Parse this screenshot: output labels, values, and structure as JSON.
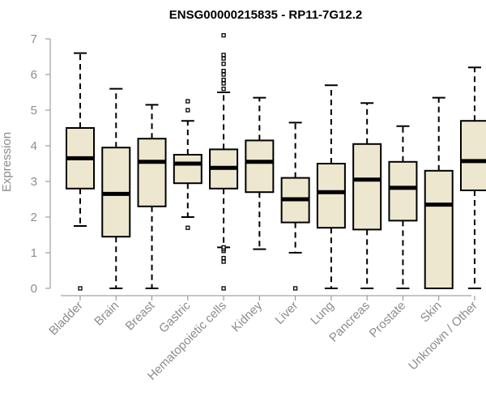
{
  "chart_data": {
    "type": "box",
    "title": "ENSG00000215835 - RP11-7G12.2",
    "xlabel": "",
    "ylabel": "Expression",
    "ylim": [
      0,
      7
    ],
    "yticks": [
      0,
      1,
      2,
      3,
      4,
      5,
      6,
      7
    ],
    "box_fill": "#ede7cf",
    "categories": [
      "Bladder",
      "Brain",
      "Breast",
      "Gastric",
      "Hematopoietic cells",
      "Kidney",
      "Liver",
      "Lung",
      "Pancreas",
      "Prostate",
      "Skin",
      "Unknown / Other"
    ],
    "series": [
      {
        "name": "Bladder",
        "whisker_low": 1.75,
        "q1": 2.8,
        "median": 3.65,
        "q3": 4.5,
        "whisker_high": 6.6,
        "outliers": [
          0.0
        ]
      },
      {
        "name": "Brain",
        "whisker_low": 0.0,
        "q1": 1.45,
        "median": 2.65,
        "q3": 3.95,
        "whisker_high": 5.6,
        "outliers": []
      },
      {
        "name": "Breast",
        "whisker_low": 0.0,
        "q1": 2.3,
        "median": 3.55,
        "q3": 4.2,
        "whisker_high": 5.15,
        "outliers": []
      },
      {
        "name": "Gastric",
        "whisker_low": 2.0,
        "q1": 2.95,
        "median": 3.5,
        "q3": 3.75,
        "whisker_high": 4.7,
        "outliers": [
          1.7,
          5.0,
          5.25
        ]
      },
      {
        "name": "Hematopoietic cells",
        "whisker_low": 1.15,
        "q1": 2.8,
        "median": 3.38,
        "q3": 3.9,
        "whisker_high": 5.5,
        "outliers": [
          0.0,
          0.75,
          0.85,
          1.05,
          1.1,
          1.15,
          5.6,
          5.75,
          5.85,
          6.0,
          6.1,
          6.3,
          6.45,
          6.55,
          7.1
        ]
      },
      {
        "name": "Kidney",
        "whisker_low": 1.1,
        "q1": 2.7,
        "median": 3.55,
        "q3": 4.15,
        "whisker_high": 5.35,
        "outliers": []
      },
      {
        "name": "Liver",
        "whisker_low": 1.0,
        "q1": 1.85,
        "median": 2.5,
        "q3": 3.1,
        "whisker_high": 4.65,
        "outliers": [
          0.0
        ]
      },
      {
        "name": "Lung",
        "whisker_low": 0.0,
        "q1": 1.7,
        "median": 2.7,
        "q3": 3.5,
        "whisker_high": 5.7,
        "outliers": []
      },
      {
        "name": "Pancreas",
        "whisker_low": 0.0,
        "q1": 1.65,
        "median": 3.05,
        "q3": 4.05,
        "whisker_high": 5.2,
        "outliers": []
      },
      {
        "name": "Prostate",
        "whisker_low": 0.0,
        "q1": 1.9,
        "median": 2.82,
        "q3": 3.55,
        "whisker_high": 4.55,
        "outliers": []
      },
      {
        "name": "Skin",
        "whisker_low": 0.0,
        "q1": 0.0,
        "median": 2.35,
        "q3": 3.3,
        "whisker_high": 5.35,
        "outliers": []
      },
      {
        "name": "Unknown / Other",
        "whisker_low": 0.0,
        "q1": 2.75,
        "median": 3.57,
        "q3": 4.7,
        "whisker_high": 6.2,
        "outliers": []
      }
    ]
  }
}
